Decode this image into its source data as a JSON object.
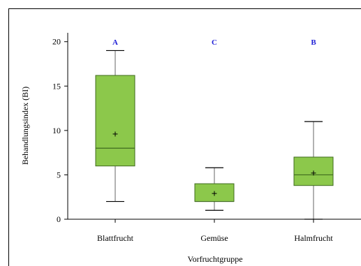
{
  "chart_data": {
    "type": "boxplot",
    "xlabel": "Vorfruchtgruppe",
    "ylabel": "Behandlungsindex (BI)",
    "ylim": [
      0,
      21
    ],
    "yticks": [
      0,
      5,
      10,
      15,
      20
    ],
    "categories": [
      "Blattfrucht",
      "Gemüse",
      "Halmfrucht"
    ],
    "letters": [
      "A",
      "C",
      "B"
    ],
    "boxes": [
      {
        "min": 2,
        "q1": 6,
        "median": 8,
        "q3": 16.2,
        "max": 19,
        "mean": 9.6
      },
      {
        "min": 1,
        "q1": 2,
        "median": 2,
        "q3": 4,
        "max": 5.8,
        "mean": 2.9
      },
      {
        "min": 0,
        "q1": 3.8,
        "median": 5,
        "q3": 7,
        "max": 11,
        "mean": 5.2
      }
    ],
    "colors": {
      "box_fill": "#8cc84b",
      "box_stroke": "#3f6b1e",
      "whisker": "#7f7f7f",
      "letter": "#1f1fd6"
    }
  }
}
